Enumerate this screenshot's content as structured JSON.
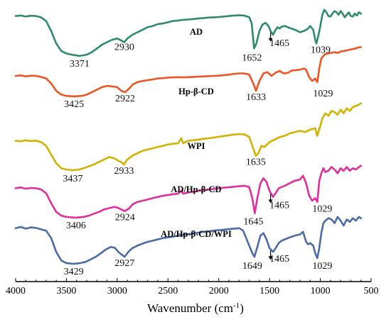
{
  "chart_data": {
    "type": "line",
    "title": "",
    "xlabel": "Wavenumber (cm",
    "xlabel_sup": "-1",
    "xlabel_end": ")",
    "ylabel": "",
    "xlim": [
      4000,
      500
    ],
    "xticks": [
      "4000",
      "3500",
      "3000",
      "2500",
      "2000",
      "1500",
      "1000",
      "500"
    ],
    "y_axis_shown": false,
    "grid": false,
    "series": [
      {
        "name": "AD",
        "color": "#2e8b6a",
        "x": [
          4000,
          3950,
          3900,
          3850,
          3800,
          3750,
          3700,
          3650,
          3600,
          3550,
          3500,
          3450,
          3400,
          3371,
          3300,
          3250,
          3200,
          3150,
          3100,
          3050,
          3000,
          2960,
          2930,
          2900,
          2850,
          2800,
          2750,
          2700,
          2650,
          2600,
          2550,
          2500,
          2450,
          2400,
          2350,
          2300,
          2250,
          2200,
          2150,
          2100,
          2050,
          2000,
          1950,
          1900,
          1850,
          1800,
          1750,
          1700,
          1675,
          1652,
          1630,
          1600,
          1570,
          1540,
          1510,
          1490,
          1465,
          1440,
          1420,
          1400,
          1380,
          1350,
          1300,
          1250,
          1200,
          1150,
          1120,
          1100,
          1070,
          1050,
          1039,
          1020,
          1000,
          980,
          960,
          940,
          920,
          900,
          880,
          860,
          840,
          820,
          800,
          780,
          760,
          740,
          720,
          700,
          680,
          660,
          640,
          620,
          600
        ],
        "y": [
          97,
          97.2,
          96.8,
          97.1,
          97,
          96.5,
          95,
          91,
          86,
          83,
          82,
          81.5,
          81.2,
          81,
          81.5,
          82.5,
          84,
          85.5,
          86.5,
          87.5,
          88,
          87.2,
          86.5,
          88,
          89.5,
          90.5,
          91.5,
          92.5,
          93,
          93.8,
          94,
          94.5,
          95,
          95.2,
          95.5,
          95.6,
          95.8,
          96,
          96.2,
          96.4,
          96.5,
          96.6,
          96.8,
          97,
          97.2,
          97.3,
          97.2,
          96.5,
          94,
          84,
          86,
          91,
          93.5,
          94.3,
          93,
          91,
          89.5,
          91.5,
          92.5,
          92,
          92.8,
          93,
          92.2,
          91.5,
          90.5,
          91.2,
          92,
          93,
          91.5,
          87.5,
          86,
          89,
          93,
          97.5,
          99.5,
          98.5,
          97,
          96.8,
          98,
          99,
          98.5,
          97.5,
          99,
          98,
          96.5,
          97.5,
          98.5,
          97,
          96.8,
          98,
          97.2,
          98.5,
          98
        ]
      },
      {
        "name": "Hp-β-CD",
        "color": "#ee5522",
        "x": [
          4000,
          3950,
          3900,
          3850,
          3800,
          3750,
          3700,
          3650,
          3600,
          3550,
          3500,
          3425,
          3350,
          3300,
          3250,
          3200,
          3150,
          3100,
          3050,
          3000,
          2960,
          2922,
          2880,
          2850,
          2800,
          2750,
          2700,
          2650,
          2600,
          2550,
          2500,
          2450,
          2400,
          2350,
          2300,
          2250,
          2200,
          2150,
          2100,
          2050,
          2000,
          1950,
          1900,
          1850,
          1800,
          1750,
          1700,
          1660,
          1633,
          1600,
          1560,
          1520,
          1480,
          1440,
          1400,
          1360,
          1320,
          1280,
          1240,
          1200,
          1160,
          1140,
          1110,
          1080,
          1050,
          1029,
          1010,
          990,
          970,
          950,
          920,
          890,
          860,
          830,
          800,
          770,
          740,
          710,
          680,
          650,
          620,
          600
        ],
        "y": [
          73,
          73.2,
          72.8,
          73.1,
          73,
          72.6,
          72,
          70,
          67,
          65.5,
          65,
          64.8,
          65,
          65.5,
          66.5,
          67.5,
          68.5,
          69,
          68.8,
          68.5,
          67,
          66.5,
          68,
          69.5,
          70.5,
          71,
          71.3,
          71.6,
          72,
          72.1,
          72.3,
          72.4,
          72.5,
          72.4,
          72.5,
          72.6,
          72.7,
          72.8,
          72.9,
          73,
          73.1,
          73.3,
          73.5,
          73.8,
          74,
          74,
          73.5,
          70,
          67,
          71,
          74,
          74.5,
          73,
          74.3,
          75,
          74,
          74.2,
          75.2,
          75.3,
          75.5,
          76,
          75.5,
          72.5,
          71,
          72,
          70.5,
          76,
          80,
          81,
          81.8,
          82,
          82.3,
          82.5,
          82.2,
          82.8,
          83,
          83.2,
          83.5,
          83.8,
          84,
          84.5,
          84.5
        ]
      },
      {
        "name": "WPI",
        "color": "#d4b000",
        "x": [
          4000,
          3950,
          3900,
          3850,
          3800,
          3750,
          3700,
          3650,
          3600,
          3550,
          3500,
          3437,
          3380,
          3330,
          3280,
          3230,
          3180,
          3130,
          3080,
          3030,
          2990,
          2960,
          2933,
          2900,
          2850,
          2800,
          2750,
          2700,
          2650,
          2600,
          2550,
          2500,
          2450,
          2400,
          2370,
          2350,
          2330,
          2300,
          2250,
          2200,
          2150,
          2100,
          2050,
          2000,
          1950,
          1900,
          1850,
          1800,
          1750,
          1700,
          1670,
          1635,
          1610,
          1580,
          1550,
          1500,
          1450,
          1400,
          1350,
          1300,
          1250,
          1200,
          1150,
          1100,
          1050,
          1030,
          1000,
          980,
          950,
          920,
          890,
          860,
          830,
          800,
          770,
          740,
          710,
          680,
          650,
          620,
          600
        ],
        "y": [
          47,
          46.8,
          47.2,
          46.9,
          47.1,
          46.5,
          45,
          41.5,
          38,
          36,
          35.5,
          35.2,
          35.5,
          36,
          36.8,
          37.5,
          38.5,
          39.5,
          40.5,
          40,
          39,
          38.5,
          37.5,
          39.5,
          41,
          42,
          43,
          43.5,
          44,
          44.5,
          45,
          45.5,
          45.8,
          46,
          48,
          46,
          46.5,
          47,
          47.2,
          47.5,
          47.8,
          48,
          48.3,
          48.6,
          48.9,
          49.2,
          49.5,
          49.7,
          49.6,
          48.5,
          45,
          41,
          42,
          45,
          44.5,
          46.5,
          47.5,
          48.5,
          49,
          50,
          50.5,
          51,
          50.5,
          51.5,
          52,
          49,
          53,
          56,
          58,
          57,
          59,
          58.5,
          57.5,
          59.5,
          58,
          60,
          59,
          60.5,
          61,
          61.5,
          62
        ]
      },
      {
        "name": "AD/Hp-β-CD",
        "color": "#e02f9d",
        "x": [
          4000,
          3950,
          3900,
          3850,
          3800,
          3750,
          3700,
          3650,
          3600,
          3550,
          3500,
          3406,
          3330,
          3280,
          3230,
          3180,
          3130,
          3080,
          3030,
          3000,
          2960,
          2924,
          2880,
          2850,
          2800,
          2750,
          2700,
          2650,
          2600,
          2550,
          2500,
          2450,
          2400,
          2370,
          2350,
          2330,
          2300,
          2250,
          2200,
          2150,
          2100,
          2050,
          2000,
          1950,
          1900,
          1850,
          1800,
          1750,
          1700,
          1670,
          1645,
          1620,
          1590,
          1560,
          1530,
          1500,
          1465,
          1440,
          1410,
          1380,
          1350,
          1300,
          1250,
          1200,
          1170,
          1140,
          1110,
          1080,
          1050,
          1029,
          1010,
          990,
          970,
          950,
          920,
          890,
          860,
          830,
          800,
          770,
          740,
          710,
          680,
          650,
          620,
          600
        ],
        "y": [
          28,
          28.3,
          27.8,
          28.1,
          28,
          27.5,
          26,
          22,
          18.5,
          17,
          16.5,
          16.2,
          16.5,
          17,
          17.8,
          18.5,
          19.5,
          20,
          20.5,
          20.3,
          19.5,
          18.8,
          20,
          21.5,
          22.5,
          23,
          23.5,
          24,
          24.5,
          25,
          25.3,
          25.6,
          25.8,
          27,
          25.8,
          26,
          26.3,
          26.6,
          26.9,
          27.2,
          27.5,
          27.7,
          28,
          28.2,
          28.4,
          28.6,
          28.8,
          29,
          28.5,
          24,
          18,
          24,
          30,
          32,
          30.5,
          27,
          24.5,
          26,
          28,
          28.5,
          29,
          30,
          31,
          31.5,
          33,
          30,
          25,
          23,
          24,
          22.5,
          31,
          34,
          36,
          34.5,
          35,
          36.5,
          35.5,
          34,
          36,
          35,
          36.5,
          35,
          36,
          35.5,
          36.5,
          37
        ]
      },
      {
        "name": "AD/Hp-β-CD/WPI",
        "color": "#4a6aa8",
        "x": [
          4000,
          3950,
          3900,
          3850,
          3800,
          3750,
          3700,
          3650,
          3600,
          3550,
          3500,
          3429,
          3360,
          3310,
          3260,
          3210,
          3160,
          3110,
          3060,
          3020,
          2990,
          2960,
          2927,
          2890,
          2850,
          2800,
          2750,
          2700,
          2650,
          2600,
          2550,
          2500,
          2450,
          2400,
          2350,
          2300,
          2250,
          2200,
          2150,
          2100,
          2050,
          2000,
          1950,
          1900,
          1850,
          1800,
          1760,
          1720,
          1690,
          1670,
          1649,
          1620,
          1590,
          1560,
          1530,
          1500,
          1465,
          1440,
          1410,
          1380,
          1350,
          1300,
          1250,
          1200,
          1170,
          1140,
          1120,
          1100,
          1070,
          1050,
          1029,
          1010,
          990,
          970,
          950,
          920,
          890,
          860,
          830,
          800,
          770,
          740,
          710,
          680,
          650,
          620,
          600
        ],
        "y": [
          12,
          12.5,
          11.8,
          12.3,
          12.1,
          11.5,
          11,
          8,
          2.5,
          -1,
          -2,
          -2.3,
          -2,
          -1.5,
          -0.5,
          0.5,
          2,
          3.5,
          4.5,
          4,
          2.5,
          1.5,
          0.5,
          2.5,
          4,
          5,
          5.8,
          6.5,
          7,
          7.5,
          8,
          8.3,
          8.6,
          9,
          9.3,
          9.6,
          9.9,
          10.2,
          10.5,
          10.7,
          11,
          11.2,
          11.4,
          11.6,
          11.8,
          12,
          11,
          7,
          4,
          2,
          0.5,
          4.5,
          9,
          10,
          7.5,
          4,
          2.5,
          4,
          6,
          7,
          7.5,
          8.3,
          9,
          9.5,
          10.5,
          6.5,
          5.5,
          6,
          5,
          2,
          0,
          4,
          10,
          14,
          15,
          16,
          15.5,
          14,
          16.5,
          15,
          13,
          15.5,
          14.5,
          16,
          15,
          16.5,
          16
        ]
      }
    ],
    "annotations": [
      {
        "text": "3371",
        "x": 3371,
        "series": 0,
        "dy": 15
      },
      {
        "text": "2930",
        "x": 2930,
        "series": 0,
        "dy": 11
      },
      {
        "text": "1652",
        "x": 1652,
        "series": 0,
        "dy": 17,
        "dx": -3
      },
      {
        "text": "1465",
        "x": 1465,
        "series": 0,
        "dy": 16,
        "dx": 9
      },
      {
        "text": "1039",
        "x": 1039,
        "series": 0,
        "dy": 13,
        "dx": 6
      },
      {
        "text": "3425",
        "x": 3425,
        "series": 1,
        "dy": 15
      },
      {
        "text": "2922",
        "x": 2922,
        "series": 1,
        "dy": 13
      },
      {
        "text": "1633",
        "x": 1633,
        "series": 1,
        "dy": 13
      },
      {
        "text": "1029",
        "x": 1029,
        "series": 1,
        "dy": 20,
        "dx": 8
      },
      {
        "text": "3437",
        "x": 3437,
        "series": 2,
        "dy": 16
      },
      {
        "text": "2933",
        "x": 2933,
        "series": 2,
        "dy": 13
      },
      {
        "text": "1635",
        "x": 1635,
        "series": 2,
        "dy": 13
      },
      {
        "text": "3406",
        "x": 3406,
        "series": 3,
        "dy": 15
      },
      {
        "text": "2924",
        "x": 2924,
        "series": 3,
        "dy": 13
      },
      {
        "text": "1645",
        "x": 1645,
        "series": 3,
        "dy": 16,
        "dx": -2
      },
      {
        "text": "1465",
        "x": 1465,
        "series": 3,
        "dy": 16,
        "dx": 9
      },
      {
        "text": "1029",
        "x": 1029,
        "series": 3,
        "dy": 14,
        "dx": 7
      },
      {
        "text": "3429",
        "x": 3429,
        "series": 4,
        "dy": 15
      },
      {
        "text": "2927",
        "x": 2927,
        "series": 4,
        "dy": 13
      },
      {
        "text": "1649",
        "x": 1649,
        "series": 4,
        "dy": 17,
        "dx": -3
      },
      {
        "text": "1465",
        "x": 1465,
        "series": 4,
        "dy": 14,
        "dx": 9
      },
      {
        "text": "1029",
        "x": 1029,
        "series": 4,
        "dy": 15,
        "dx": 7
      }
    ],
    "series_labels": [
      "AD",
      "Hp-β-CD",
      "WPI",
      "AD/Hp-β-CD",
      "AD/Hp-β-CD/WPI"
    ],
    "arrows": [
      {
        "x": 1490,
        "series": 0
      },
      {
        "x": 1490,
        "series": 3
      },
      {
        "x": 1490,
        "series": 4
      }
    ]
  }
}
